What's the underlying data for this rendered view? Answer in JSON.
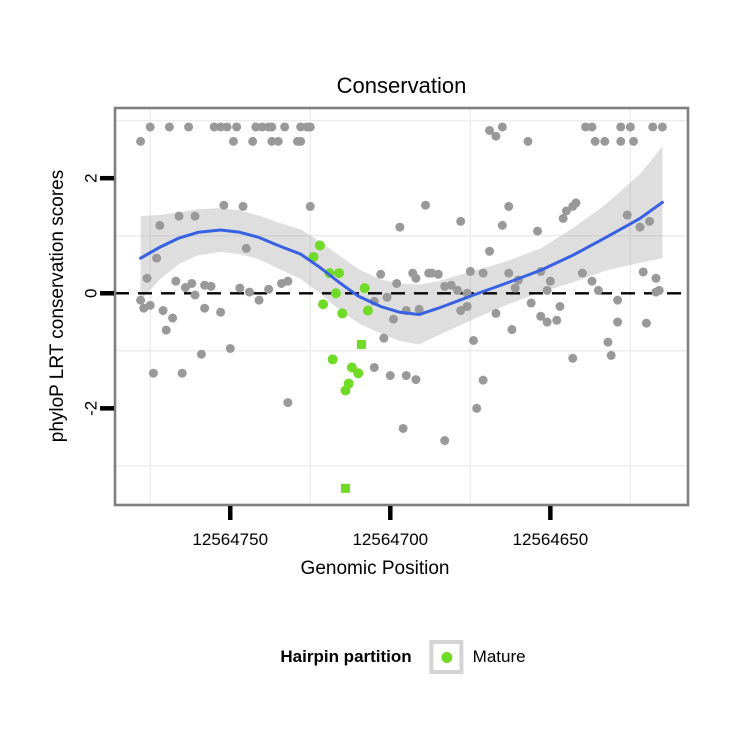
{
  "title": "Conservation",
  "x_axis": {
    "label": "Genomic Position",
    "reversed": true,
    "domain_left": 12564786,
    "domain_right": 12564607,
    "ticks": [
      {
        "value": 12564750,
        "label": "12564750"
      },
      {
        "value": 12564700,
        "label": "12564700"
      },
      {
        "value": 12564650,
        "label": "12564650"
      }
    ],
    "minor_gridlines": [
      12564775,
      12564725,
      12564675,
      12564625
    ]
  },
  "y_axis": {
    "label": "phyloP LRT conservation scores",
    "domain_top": 3.22,
    "domain_bottom": -3.68,
    "ticks": [
      {
        "value": 2,
        "label": "2"
      },
      {
        "value": 0,
        "label": "0"
      },
      {
        "value": -2,
        "label": "-2"
      }
    ],
    "minor_gridlines": [
      3,
      1,
      -1,
      -3
    ]
  },
  "reference_line": {
    "y": 0,
    "style": "dashed"
  },
  "legend": {
    "title": "Hairpin partition",
    "items": [
      {
        "label": "Mature",
        "color": "#6fdb24",
        "shape": "circle"
      }
    ]
  },
  "colors": {
    "point_default": "#999999",
    "point_mature": "#6fdb24",
    "smooth_line": "#3760e2",
    "smooth_band": "rgba(145,145,145,0.30)",
    "panel_border": "#7f7f7f",
    "gridline_minor": "#ededed",
    "tick": "#000000",
    "zero_line": "#000000",
    "panel_bg": "#ffffff"
  },
  "chart_data": {
    "type": "scatter",
    "title": "Conservation",
    "xlabel": "Genomic Position",
    "ylabel": "phyloP LRT conservation scores",
    "x_reversed": true,
    "xlim": [
      12564607,
      12564786
    ],
    "ylim": [
      -3.68,
      3.22
    ],
    "series": [
      {
        "name": "default",
        "color": "#999999",
        "points": [
          [
            12564775,
            2.89
          ],
          [
            12564769,
            2.89
          ],
          [
            12564763,
            2.89
          ],
          [
            12564755,
            2.89
          ],
          [
            12564753,
            2.89
          ],
          [
            12564751,
            2.89
          ],
          [
            12564748,
            2.89
          ],
          [
            12564742,
            2.89
          ],
          [
            12564740,
            2.89
          ],
          [
            12564738,
            2.89
          ],
          [
            12564737,
            2.89
          ],
          [
            12564733,
            2.89
          ],
          [
            12564728,
            2.89
          ],
          [
            12564726,
            2.89
          ],
          [
            12564725,
            2.89
          ],
          [
            12564665,
            2.89
          ],
          [
            12564639,
            2.89
          ],
          [
            12564637,
            2.89
          ],
          [
            12564628,
            2.89
          ],
          [
            12564625,
            2.89
          ],
          [
            12564618,
            2.89
          ],
          [
            12564615,
            2.89
          ],
          [
            12564778,
            2.64
          ],
          [
            12564749,
            2.64
          ],
          [
            12564743,
            2.64
          ],
          [
            12564737,
            2.64
          ],
          [
            12564735,
            2.64
          ],
          [
            12564729,
            2.64
          ],
          [
            12564728,
            2.64
          ],
          [
            12564657,
            2.64
          ],
          [
            12564636,
            2.64
          ],
          [
            12564633,
            2.64
          ],
          [
            12564628,
            2.64
          ],
          [
            12564624,
            2.64
          ],
          [
            12564669,
            2.83
          ],
          [
            12564667,
            2.73
          ],
          [
            12564725,
            1.51
          ],
          [
            12564689,
            1.53
          ],
          [
            12564678,
            1.25
          ],
          [
            12564697,
            1.15
          ],
          [
            12564752,
            1.53
          ],
          [
            12564746,
            1.51
          ],
          [
            12564766,
            1.34
          ],
          [
            12564761,
            1.34
          ],
          [
            12564772,
            1.18
          ],
          [
            12564745,
            0.78
          ],
          [
            12564773,
            0.61
          ],
          [
            12564776,
            0.26
          ],
          [
            12564663,
            1.51
          ],
          [
            12564665,
            1.18
          ],
          [
            12564654,
            1.08
          ],
          [
            12564646,
            1.3
          ],
          [
            12564645,
            1.43
          ],
          [
            12564643,
            1.51
          ],
          [
            12564642,
            1.57
          ],
          [
            12564626,
            1.36
          ],
          [
            12564622,
            1.15
          ],
          [
            12564619,
            1.25
          ],
          [
            12564669,
            0.73
          ],
          [
            12564767,
            0.21
          ],
          [
            12564764,
            0.1
          ],
          [
            12564762,
            0.17
          ],
          [
            12564758,
            0.14
          ],
          [
            12564756,
            0.12
          ],
          [
            12564747,
            0.09
          ],
          [
            12564744,
            0.02
          ],
          [
            12564741,
            -0.12
          ],
          [
            12564738,
            0.07
          ],
          [
            12564734,
            0.17
          ],
          [
            12564732,
            0.21
          ],
          [
            12564778,
            -0.12
          ],
          [
            12564775,
            -0.21
          ],
          [
            12564761,
            -0.03
          ],
          [
            12564777,
            -0.26
          ],
          [
            12564771,
            -0.3
          ],
          [
            12564768,
            -0.43
          ],
          [
            12564770,
            -0.64
          ],
          [
            12564758,
            -0.26
          ],
          [
            12564753,
            -0.33
          ],
          [
            12564750,
            -0.96
          ],
          [
            12564759,
            -1.06
          ],
          [
            12564774,
            -1.39
          ],
          [
            12564765,
            -1.39
          ],
          [
            12564732,
            -1.9
          ],
          [
            12564703,
            0.33
          ],
          [
            12564698,
            0.17
          ],
          [
            12564693,
            0.35
          ],
          [
            12564692,
            0.26
          ],
          [
            12564688,
            0.35
          ],
          [
            12564687,
            0.35
          ],
          [
            12564685,
            0.33
          ],
          [
            12564705,
            -0.14
          ],
          [
            12564701,
            -0.07
          ],
          [
            12564695,
            -0.3
          ],
          [
            12564691,
            -0.28
          ],
          [
            12564699,
            -0.45
          ],
          [
            12564702,
            -0.78
          ],
          [
            12564705,
            -1.29
          ],
          [
            12564700,
            -1.43
          ],
          [
            12564695,
            -1.43
          ],
          [
            12564692,
            -1.5
          ],
          [
            12564696,
            -2.35
          ],
          [
            12564683,
            -2.56
          ],
          [
            12564675,
            0.38
          ],
          [
            12564671,
            0.35
          ],
          [
            12564681,
            0.14
          ],
          [
            12564683,
            0.12
          ],
          [
            12564679,
            0.05
          ],
          [
            12564676,
            0.0
          ],
          [
            12564663,
            0.35
          ],
          [
            12564660,
            0.23
          ],
          [
            12564661,
            0.09
          ],
          [
            12564653,
            0.38
          ],
          [
            12564650,
            0.21
          ],
          [
            12564651,
            0.05
          ],
          [
            12564640,
            0.35
          ],
          [
            12564637,
            0.21
          ],
          [
            12564635,
            0.05
          ],
          [
            12564629,
            -0.12
          ],
          [
            12564621,
            0.37
          ],
          [
            12564617,
            0.26
          ],
          [
            12564616,
            0.05
          ],
          [
            12564656,
            -0.17
          ],
          [
            12564647,
            -0.23
          ],
          [
            12564617,
            0.02
          ],
          [
            12564678,
            -0.3
          ],
          [
            12564676,
            -0.23
          ],
          [
            12564653,
            -0.4
          ],
          [
            12564651,
            -0.5
          ],
          [
            12564648,
            -0.47
          ],
          [
            12564667,
            -0.35
          ],
          [
            12564662,
            -0.63
          ],
          [
            12564674,
            -0.82
          ],
          [
            12564629,
            -0.5
          ],
          [
            12564620,
            -0.52
          ],
          [
            12564632,
            -0.85
          ],
          [
            12564631,
            -1.08
          ],
          [
            12564643,
            -1.13
          ],
          [
            12564671,
            -1.51
          ],
          [
            12564673,
            -2.0
          ]
        ]
      },
      {
        "name": "Mature",
        "color": "#6fdb24",
        "points": [
          [
            12564722,
            0.83,
            "circle"
          ],
          [
            12564724,
            0.63,
            "circle"
          ],
          [
            12564719,
            0.35,
            "circle"
          ],
          [
            12564716,
            0.35,
            "circle"
          ],
          [
            12564717,
            0.0,
            "circle"
          ],
          [
            12564721,
            -0.19,
            "circle"
          ],
          [
            12564715,
            -0.35,
            "circle"
          ],
          [
            12564708,
            0.09,
            "circle"
          ],
          [
            12564707,
            -0.3,
            "circle"
          ],
          [
            12564709,
            -0.89,
            "square"
          ],
          [
            12564718,
            -1.15,
            "circle"
          ],
          [
            12564712,
            -1.29,
            "circle"
          ],
          [
            12564710,
            -1.39,
            "circle"
          ],
          [
            12564713,
            -1.57,
            "circle"
          ],
          [
            12564714,
            -1.69,
            "circle"
          ],
          [
            12564714,
            -3.39,
            "square"
          ]
        ]
      }
    ],
    "smooth": {
      "name": "loess fit",
      "color": "#3760e2",
      "points": [
        [
          12564778,
          0.61
        ],
        [
          12564772,
          0.8
        ],
        [
          12564766,
          0.96
        ],
        [
          12564760,
          1.06
        ],
        [
          12564753,
          1.1
        ],
        [
          12564747,
          1.06
        ],
        [
          12564741,
          0.97
        ],
        [
          12564735,
          0.83
        ],
        [
          12564728,
          0.68
        ],
        [
          12564722,
          0.45
        ],
        [
          12564716,
          0.19
        ],
        [
          12564710,
          -0.05
        ],
        [
          12564703,
          -0.23
        ],
        [
          12564697,
          -0.33
        ],
        [
          12564691,
          -0.37
        ],
        [
          12564685,
          -0.26
        ],
        [
          12564674,
          -0.03
        ],
        [
          12564664,
          0.17
        ],
        [
          12564653,
          0.4
        ],
        [
          12564643,
          0.66
        ],
        [
          12564633,
          0.96
        ],
        [
          12564622,
          1.3
        ],
        [
          12564615,
          1.58
        ]
      ],
      "band_halfwidth": [
        0.73,
        0.56,
        0.45,
        0.4,
        0.38,
        0.38,
        0.38,
        0.4,
        0.43,
        0.45,
        0.47,
        0.47,
        0.47,
        0.5,
        0.52,
        0.47,
        0.42,
        0.38,
        0.38,
        0.47,
        0.57,
        0.77,
        0.97
      ]
    }
  }
}
